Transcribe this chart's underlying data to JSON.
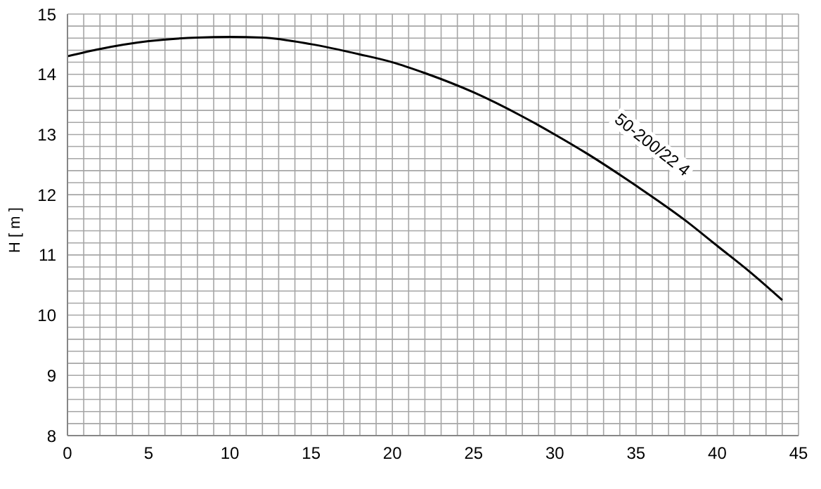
{
  "chart_data": {
    "type": "line",
    "ylabel": "H [ m ]",
    "x": [
      0,
      2,
      5,
      8,
      10,
      12,
      15,
      18,
      20,
      22,
      25,
      28,
      30,
      32,
      35,
      38,
      40,
      42,
      44
    ],
    "series": [
      {
        "color": "#000000",
        "values": [
          14.3,
          14.42,
          14.55,
          14.61,
          14.62,
          14.61,
          14.5,
          14.33,
          14.2,
          14.02,
          13.7,
          13.3,
          13.0,
          12.68,
          12.15,
          11.58,
          11.15,
          10.72,
          10.25
        ]
      }
    ],
    "annotations": [
      "50-200/22 4"
    ],
    "xlim": [
      0,
      45
    ],
    "ylim": [
      8,
      15
    ],
    "xticks": [
      0,
      {
        "value": 1,
        "label": null
      },
      {
        "value": 2,
        "label": null
      },
      {
        "value": 3,
        "label": null
      },
      {
        "value": 4,
        "label": null
      },
      5,
      {
        "value": 6,
        "label": null
      },
      {
        "value": 7,
        "label": null
      },
      {
        "value": 8,
        "label": null
      },
      {
        "value": 9,
        "label": null
      },
      10,
      {
        "value": 11,
        "label": null
      },
      {
        "value": 12,
        "label": null
      },
      {
        "value": 13,
        "label": null
      },
      {
        "value": 14,
        "label": null
      },
      15,
      {
        "value": 16,
        "label": null
      },
      {
        "value": 17,
        "label": null
      },
      {
        "value": 18,
        "label": null
      },
      {
        "value": 19,
        "label": null
      },
      20,
      {
        "value": 21,
        "label": null
      },
      {
        "value": 22,
        "label": null
      },
      {
        "value": 23,
        "label": null
      },
      {
        "value": 24,
        "label": null
      },
      25,
      {
        "value": 26,
        "label": null
      },
      {
        "value": 27,
        "label": null
      },
      {
        "value": 28,
        "label": null
      },
      {
        "value": 29,
        "label": null
      },
      30,
      {
        "value": 31,
        "label": null
      },
      {
        "value": 32,
        "label": null
      },
      {
        "value": 33,
        "label": null
      },
      {
        "value": 34,
        "label": null
      },
      35,
      {
        "value": 36,
        "label": null
      },
      {
        "value": 37,
        "label": null
      },
      {
        "value": 38,
        "label": null
      },
      {
        "value": 39,
        "label": null
      },
      40,
      {
        "value": 41,
        "label": null
      },
      {
        "value": 42,
        "label": null
      },
      {
        "value": 43,
        "label": null
      },
      {
        "value": 44,
        "label": null
      },
      45
    ],
    "yticks": [
      8,
      {
        "value": 8.2,
        "label": null
      },
      {
        "value": 8.4,
        "label": null
      },
      {
        "value": 8.6,
        "label": null
      },
      {
        "value": 8.8,
        "label": null
      },
      9,
      {
        "value": 9.2,
        "label": null
      },
      {
        "value": 9.4,
        "label": null
      },
      {
        "value": 9.6,
        "label": null
      },
      {
        "value": 9.8,
        "label": null
      },
      10,
      {
        "value": 10.2,
        "label": null
      },
      {
        "value": 10.4,
        "label": null
      },
      {
        "value": 10.6,
        "label": null
      },
      {
        "value": 10.8,
        "label": null
      },
      11,
      {
        "value": 11.2,
        "label": null
      },
      {
        "value": 11.4,
        "label": null
      },
      {
        "value": 11.6,
        "label": null
      },
      {
        "value": 11.8,
        "label": null
      },
      12,
      {
        "value": 12.2,
        "label": null
      },
      {
        "value": 12.4,
        "label": null
      },
      {
        "value": 12.6,
        "label": null
      },
      {
        "value": 12.8,
        "label": null
      },
      13,
      {
        "value": 13.2,
        "label": null
      },
      {
        "value": 13.4,
        "label": null
      },
      {
        "value": 13.6,
        "label": null
      },
      {
        "value": 13.8,
        "label": null
      },
      14,
      {
        "value": 14.2,
        "label": null
      },
      {
        "value": 14.4,
        "label": null
      },
      {
        "value": 14.6,
        "label": null
      },
      {
        "value": 14.8,
        "label": null
      },
      15
    ],
    "grid": true,
    "marker": "none",
    "line_style": "solid",
    "legend": false
  }
}
